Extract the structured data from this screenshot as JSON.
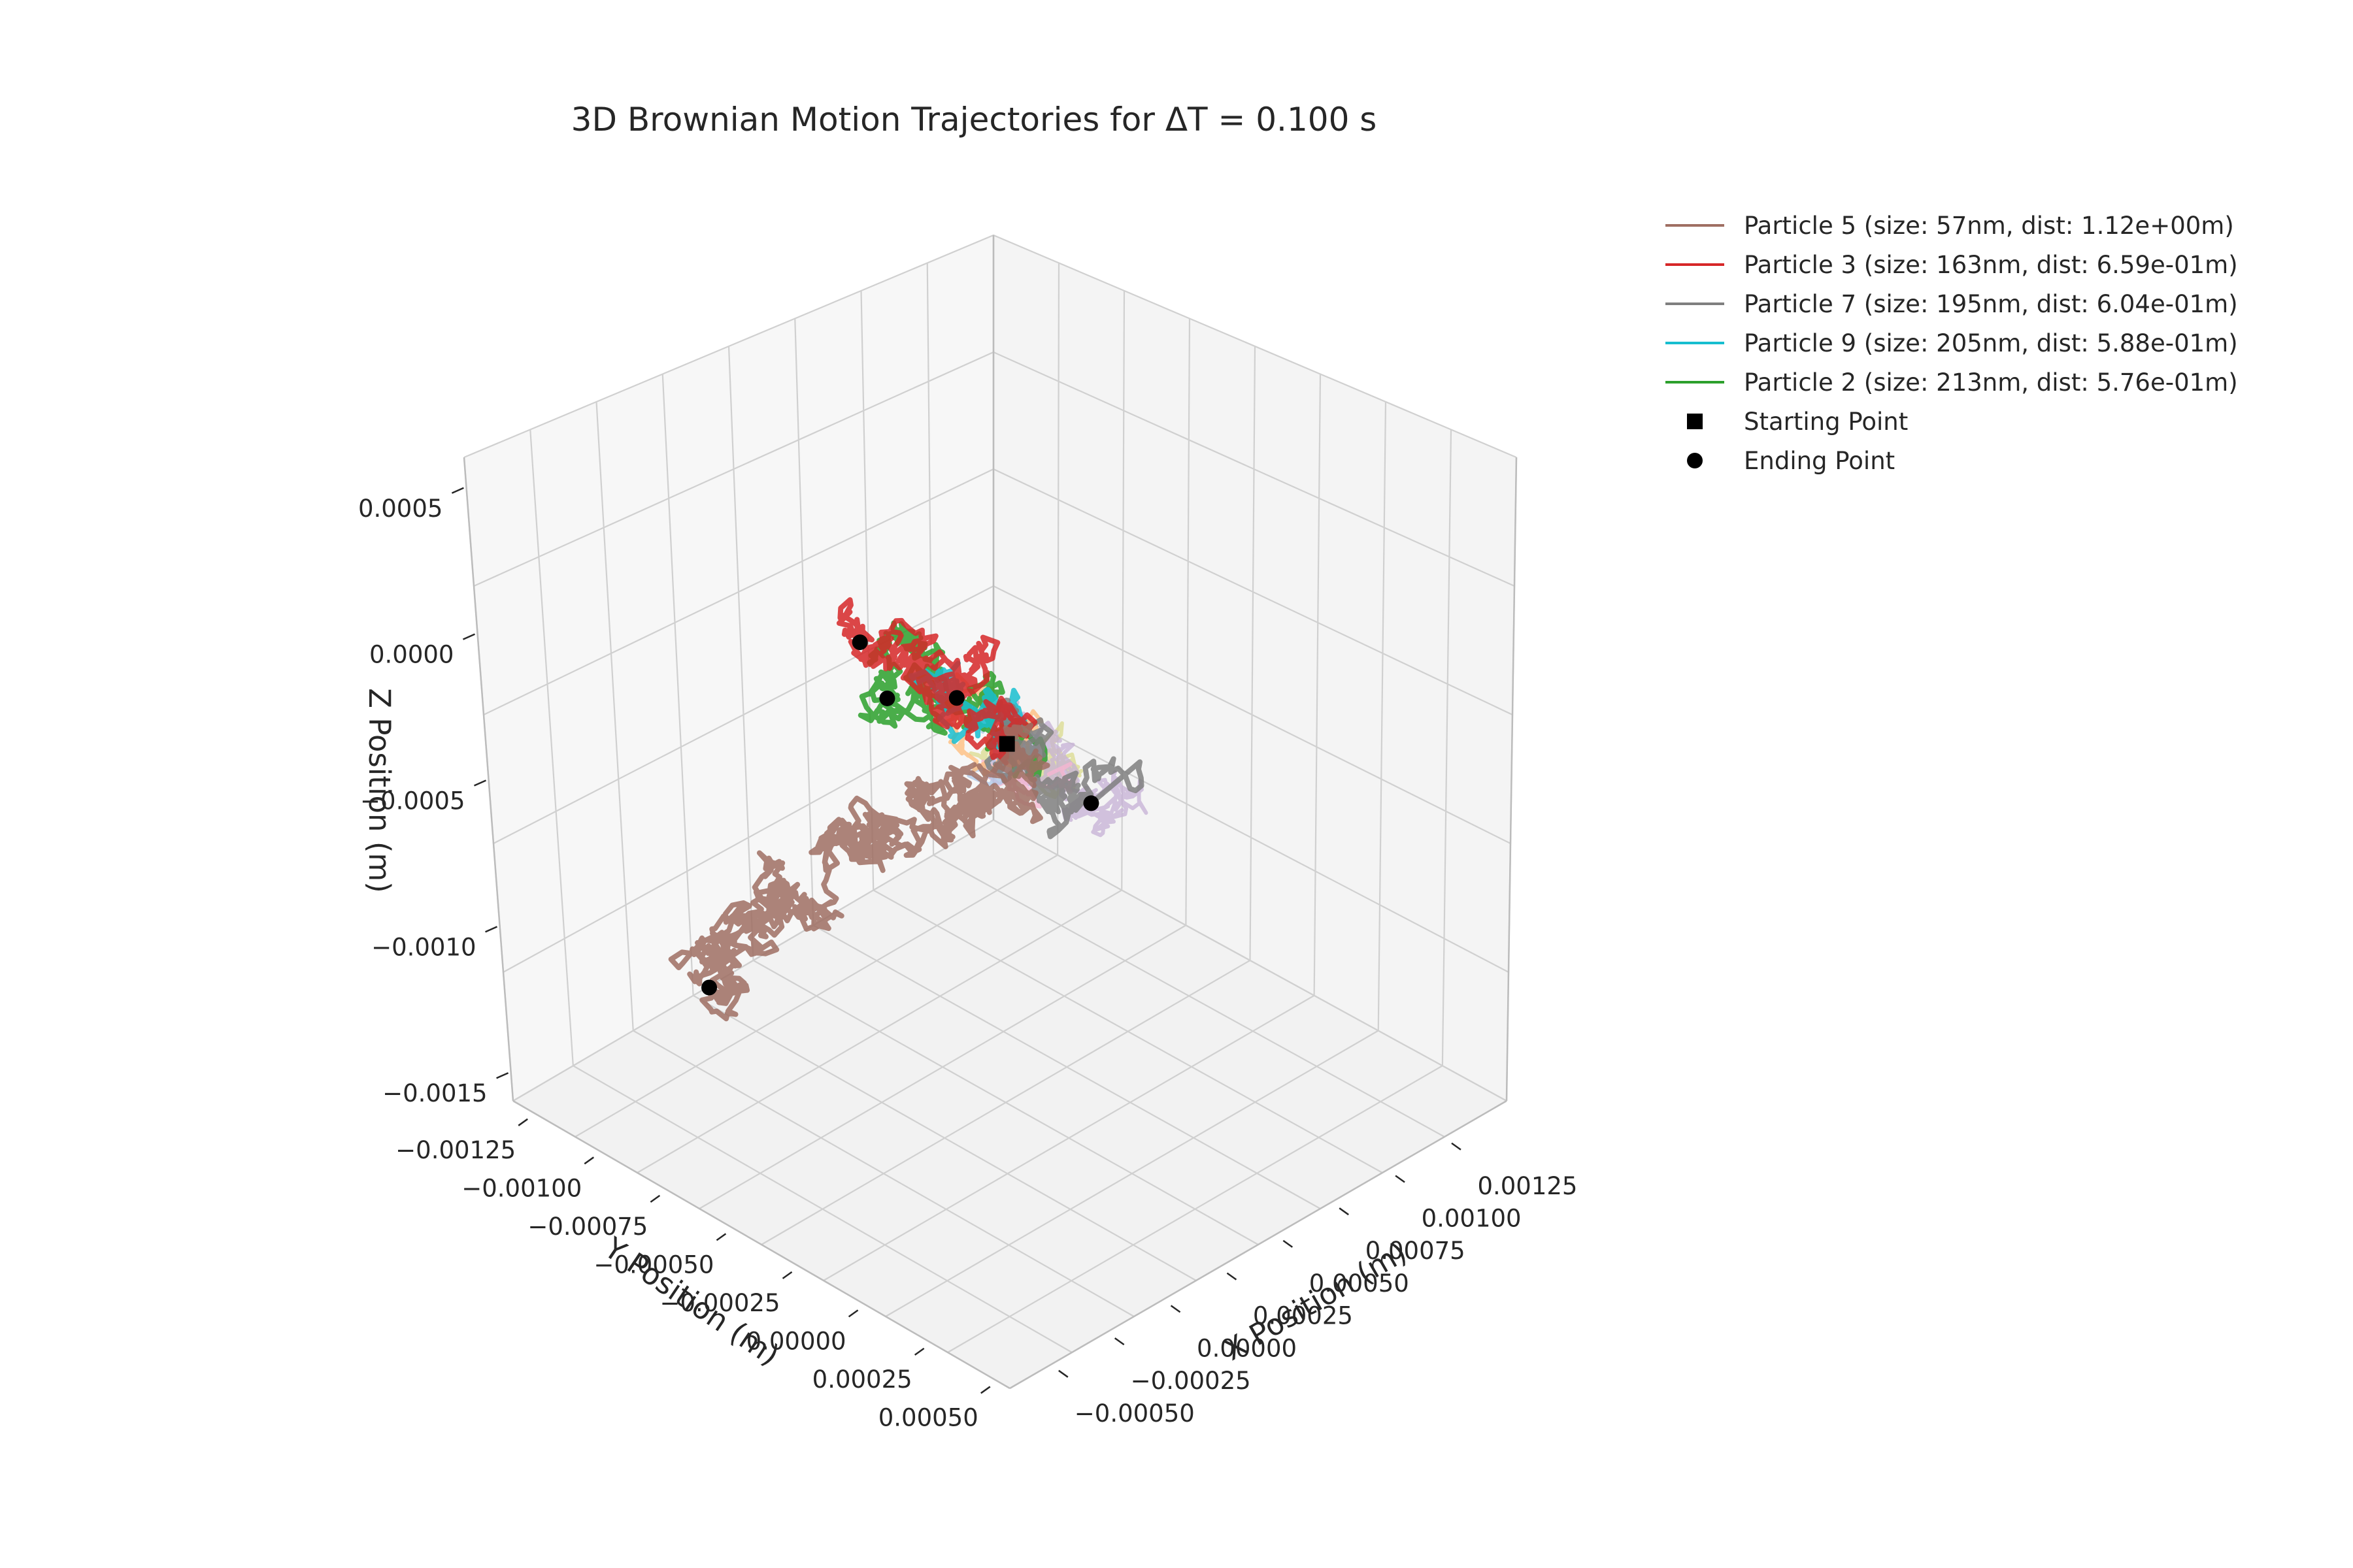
{
  "chart_data": {
    "type": "line",
    "projection": "3d",
    "title": "3D Brownian Motion Trajectories for ΔT = 0.100 s",
    "xlabel": "X Position (m)",
    "ylabel": "Y Position (m)",
    "zlabel": "Z Position (m)",
    "xlim": [
      -0.0006,
      0.00135
    ],
    "ylim": [
      -0.00135,
      0.00055
    ],
    "zlim": [
      -0.0016,
      0.0006
    ],
    "x_ticks": [
      "−0.00050",
      "−0.00025",
      "0.00000",
      "0.00025",
      "0.00050",
      "0.00075",
      "0.00100",
      "0.00125"
    ],
    "y_ticks": [
      "−0.00125",
      "−0.00100",
      "−0.00075",
      "−0.00050",
      "−0.00025",
      "0.00000",
      "0.00025",
      "0.00050"
    ],
    "z_ticks": [
      "0.0005",
      "0.0000",
      "−0.0005",
      "−0.0010",
      "−0.0015"
    ],
    "grid": true,
    "legend_position": "top-right, outside",
    "start_point": {
      "x": 0,
      "y": 0,
      "z": 0
    },
    "series": [
      {
        "name": "Particle 5 (size: 57nm, dist: 1.12e+00m)",
        "color": "#9f6f63",
        "legend": true,
        "path": [
          [
            0,
            0,
            0
          ],
          [
            6e-05,
            -0.00012,
            -0.00025
          ],
          [
            4e-05,
            -0.00028,
            -0.00038
          ],
          [
            0.00014,
            -0.0004,
            -0.00052
          ],
          [
            2e-05,
            -0.00055,
            -0.0006
          ],
          [
            0.00016,
            -0.00068,
            -0.00078
          ],
          [
            4e-05,
            -0.0008,
            -0.0009
          ],
          [
            0.0001,
            -0.00095,
            -0.00105
          ],
          [
            0.00018,
            -0.0011,
            -0.00118
          ],
          [
            8e-05,
            -0.00125,
            -0.00135
          ],
          [
            0.00012,
            -0.0013,
            -0.00155
          ]
        ],
        "end": [
          0.00012,
          -0.0013,
          -0.00155
        ]
      },
      {
        "name": "Particle 3 (size: 163nm, dist: 6.59e-01m)",
        "color": "#d62728",
        "legend": true,
        "path": [
          [
            0,
            0,
            0
          ],
          [
            -4e-05,
            -8e-05,
            8e-05
          ],
          [
            -0.0001,
            -0.00016,
            0.00018
          ],
          [
            -0.00018,
            -0.00022,
            0.00026
          ],
          [
            -0.00026,
            -0.0003,
            0.00032
          ]
        ],
        "end": [
          -0.00026,
          -0.0003,
          0.00032
        ]
      },
      {
        "name": "Particle 7 (size: 195nm, dist: 6.04e-01m)",
        "color": "#7f7f7f",
        "legend": true,
        "path": [
          [
            0,
            0,
            0
          ],
          [
            6e-05,
            -5e-05,
            -0.0001
          ],
          [
            0.00014,
            -9e-05,
            -0.00018
          ],
          [
            0.00021,
            -4e-05,
            -0.00026
          ],
          [
            0.00028,
            4e-05,
            -0.00032
          ]
        ],
        "end": [
          0.00028,
          4e-05,
          -0.00032
        ]
      },
      {
        "name": "Particle 9 (size: 205nm, dist: 5.88e-01m)",
        "color": "#17becf",
        "legend": true,
        "path": [
          [
            0,
            0,
            0
          ],
          [
            -5e-05,
            -2e-05,
            8e-05
          ],
          [
            -0.0001,
            1e-05,
            0.00016
          ],
          [
            -0.00016,
            -3e-05,
            0.00022
          ]
        ],
        "end": [
          -0.00016,
          -3e-05,
          0.00022
        ]
      },
      {
        "name": "Particle 2 (size: 213nm, dist: 5.76e-01m)",
        "color": "#2ca02c",
        "legend": true,
        "path": [
          [
            0,
            0,
            0
          ],
          [
            -4e-05,
            -0.0001,
            4e-05
          ],
          [
            -6e-05,
            -0.0002,
            0.00012
          ],
          [
            -0.00012,
            -0.00028,
            0.00022
          ],
          [
            -0.00014,
            -0.00032,
            6e-05
          ]
        ],
        "end": [
          -0.00014,
          -0.00032,
          6e-05
        ]
      },
      {
        "name": "",
        "color": "#ffbb78",
        "legend": false,
        "path": [
          [
            0,
            0,
            0
          ],
          [
            -0.0001,
            8e-05,
            0.00012
          ],
          [
            -0.00022,
            0.00012,
            0.00022
          ],
          [
            -0.0003,
            0.0002,
            0.00036
          ]
        ],
        "end": null
      },
      {
        "name": "",
        "color": "#aec7e8",
        "legend": false,
        "path": [
          [
            0,
            0,
            0
          ],
          [
            -0.0001,
            0.00012,
            6e-05
          ],
          [
            -0.00016,
            0.00026,
            0.00012
          ]
        ],
        "end": null
      },
      {
        "name": "",
        "color": "#f7b6d2",
        "legend": false,
        "path": [
          [
            0,
            0,
            0
          ],
          [
            -2e-05,
            0.0001,
            2e-05
          ],
          [
            -6e-05,
            0.00022,
            4e-05
          ]
        ],
        "end": null
      },
      {
        "name": "",
        "color": "#c5b0d5",
        "legend": false,
        "path": [
          [
            0,
            0,
            0
          ],
          [
            4e-05,
            0.0001,
            -4e-05
          ],
          [
            8e-05,
            0.00022,
            -8e-05
          ],
          [
            0.00012,
            0.00032,
            -0.00012
          ]
        ],
        "end": null
      },
      {
        "name": "",
        "color": "#dbdb8d",
        "legend": false,
        "path": [
          [
            0,
            0,
            0
          ],
          [
            8e-05,
            4e-05,
            -6e-05
          ],
          [
            0.00016,
            8e-05,
            -0.00014
          ]
        ],
        "end": null
      }
    ],
    "legend_extra": [
      {
        "label": "Starting Point",
        "marker": "square"
      },
      {
        "label": "Ending Point",
        "marker": "circle"
      }
    ]
  }
}
